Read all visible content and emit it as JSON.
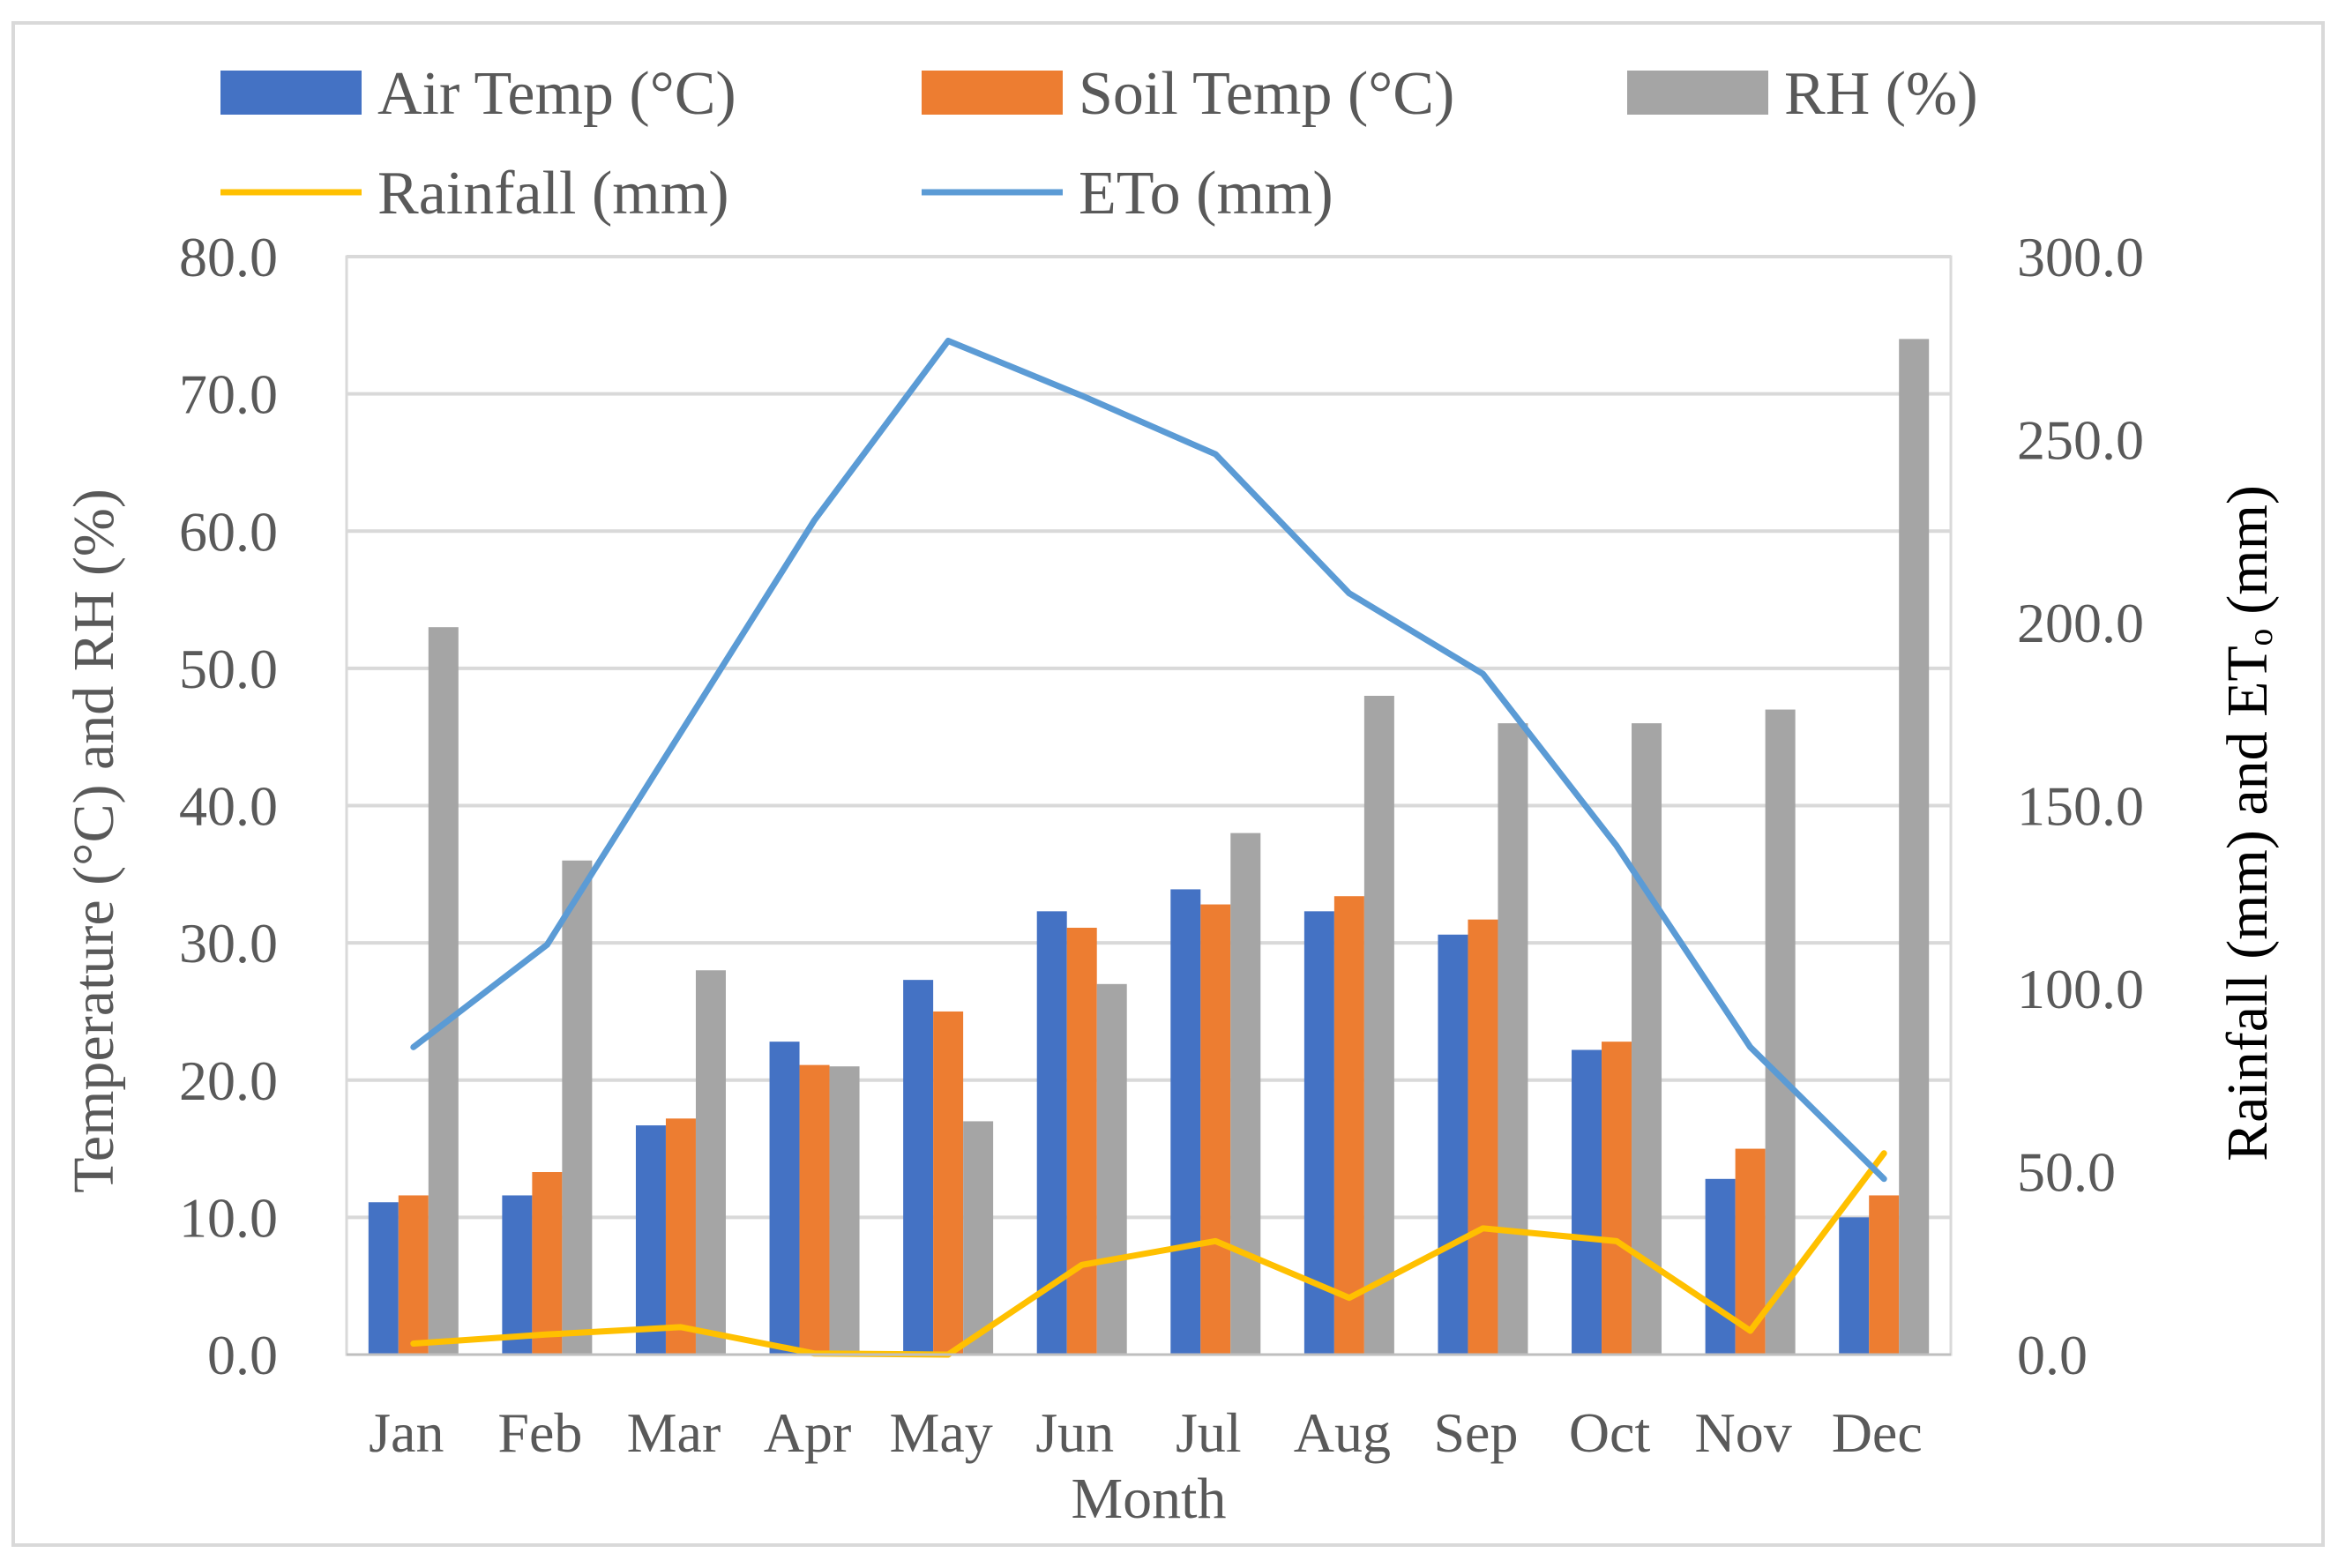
{
  "chart_data": {
    "type": "bar",
    "xlabel": "Month",
    "ylabel_left": "Temperature (°C) and RH (%)",
    "ylabel_right": "Rainfall (mm) and ETₒ (mm)",
    "categories": [
      "Jan",
      "Feb",
      "Mar",
      "Apr",
      "May",
      "Jun",
      "Jul",
      "Aug",
      "Sep",
      "Oct",
      "Nov",
      "Dec"
    ],
    "ylim_left": [
      0,
      80
    ],
    "ylim_right": [
      0,
      300
    ],
    "left_ticks": [
      "0.0",
      "10.0",
      "20.0",
      "30.0",
      "40.0",
      "50.0",
      "60.0",
      "70.0",
      "80.0"
    ],
    "right_ticks": [
      "0.0",
      "50.0",
      "100.0",
      "150.0",
      "200.0",
      "250.0",
      "300.0"
    ],
    "grid": true,
    "legend_position": "top",
    "series": [
      {
        "name": "Air Temp (°C)",
        "type": "bar",
        "axis": "left",
        "color": "#4472c4",
        "values": [
          11.1,
          11.6,
          16.7,
          22.8,
          27.3,
          32.3,
          33.9,
          32.3,
          30.6,
          22.2,
          12.8,
          10.0
        ]
      },
      {
        "name": "Soil Temp (°C)",
        "type": "bar",
        "axis": "left",
        "color": "#ed7d31",
        "values": [
          11.6,
          13.3,
          17.2,
          21.1,
          25.0,
          31.1,
          32.8,
          33.4,
          31.7,
          22.8,
          15.0,
          11.6
        ]
      },
      {
        "name": "RH (%)",
        "type": "bar",
        "axis": "left",
        "color": "#a5a5a5",
        "values": [
          53,
          36,
          28,
          21,
          17,
          27,
          38,
          48,
          46,
          46,
          47,
          74
        ]
      },
      {
        "name": "Rainfall (mm)",
        "type": "line",
        "axis": "right",
        "color": "#ffc000",
        "values": [
          3.0,
          5.5,
          7.5,
          0.3,
          0.0,
          24.5,
          31.0,
          15.5,
          34.5,
          31.0,
          6.5,
          55.0
        ]
      },
      {
        "name": "ETo (mm)",
        "type": "line",
        "axis": "right",
        "color": "#5b9bd5",
        "values": [
          84,
          112,
          170,
          228,
          277,
          262,
          246,
          208,
          186,
          139,
          84,
          48
        ]
      }
    ]
  }
}
